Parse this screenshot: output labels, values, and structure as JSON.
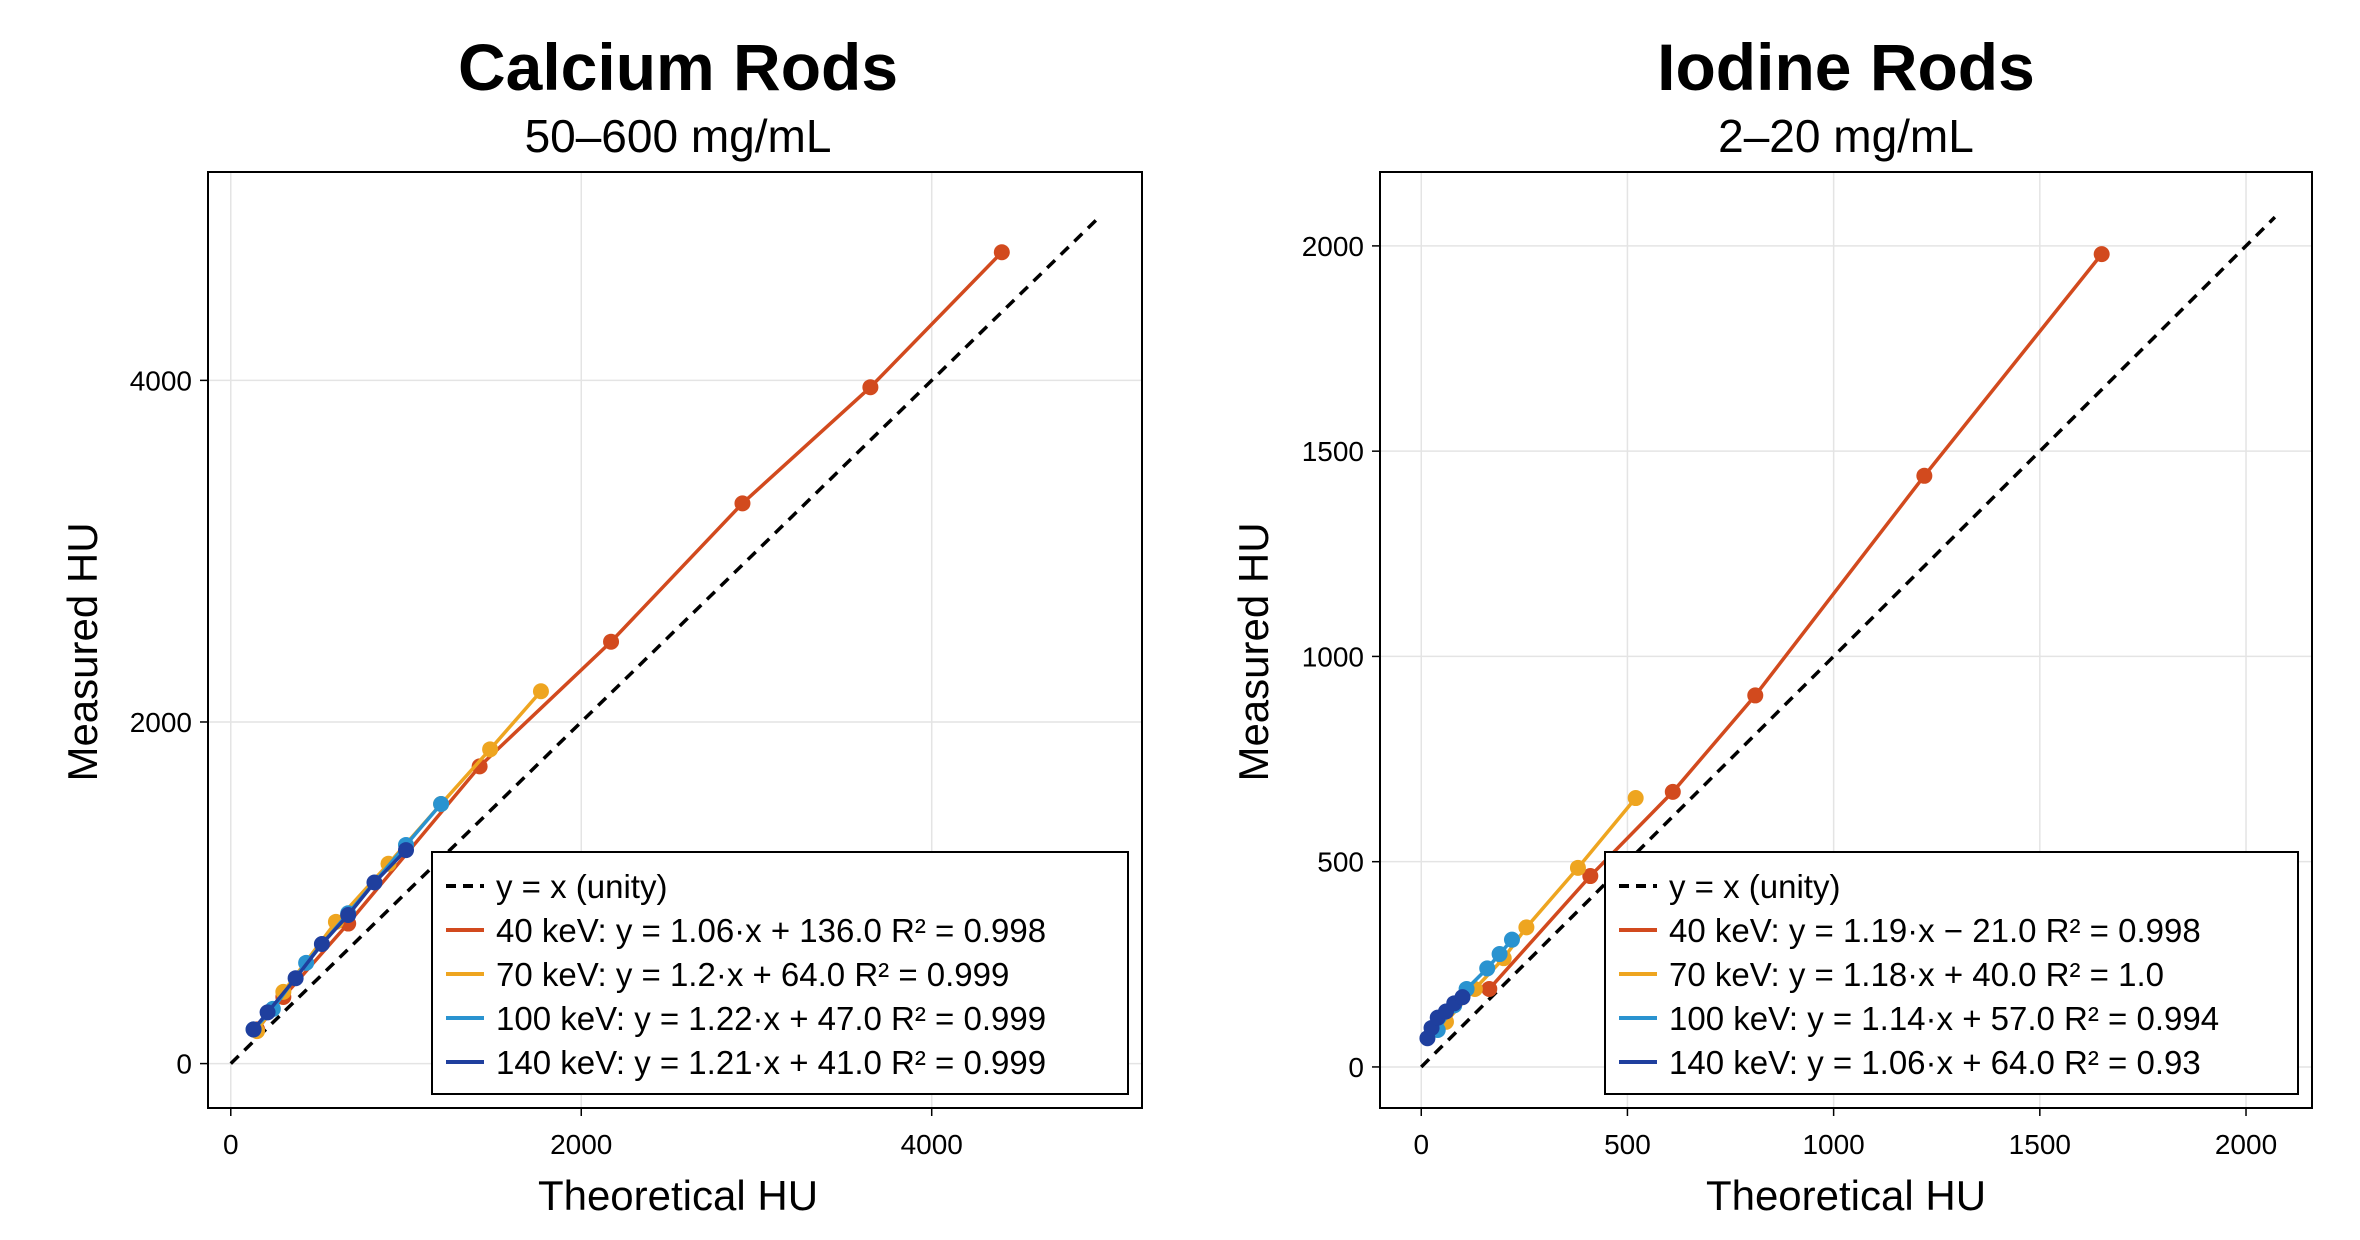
{
  "colors": {
    "kev40": "#d24a1e",
    "kev70": "#eea520",
    "kev100": "#2a93d0",
    "kev140": "#1f3f9e",
    "unity": "#000000",
    "grid": "#e4e4e4"
  },
  "chart_data": [
    {
      "type": "scatter",
      "title": "Calcium Rods",
      "subtitle": "50–600 mg/mL",
      "xlabel": "Theoretical HU",
      "ylabel": "Measured HU",
      "xlim": [
        -130,
        5200
      ],
      "ylim": [
        -260,
        5220
      ],
      "xticks": [
        0,
        2000,
        4000
      ],
      "yticks": [
        0,
        2000,
        4000
      ],
      "xtick_labels": [
        "0",
        "2000",
        "4000"
      ],
      "ytick_labels": [
        "0",
        "2000",
        "4000"
      ],
      "grid": true,
      "legend_position": "bottom-right",
      "unity": {
        "label": "y = x (unity)",
        "range": [
          0,
          4950
        ]
      },
      "series": [
        {
          "name": "40 keV",
          "legend": "40 keV: y = 1.06·x + 136.0   R² = 0.998",
          "color_key": "kev40",
          "slope": 1.06,
          "intercept": 136.0,
          "x": [
            150,
            300,
            670,
            1420,
            2170,
            2920,
            3650,
            4400
          ],
          "y": [
            200,
            390,
            820,
            1740,
            2470,
            3280,
            3960,
            4750
          ]
        },
        {
          "name": "70 keV",
          "legend": "70 keV: y = 1.2·x + 64.0   R² = 0.999",
          "color_key": "kev70",
          "x": [
            150,
            300,
            600,
            900,
            1200,
            1480,
            1770
          ],
          "y": [
            190,
            420,
            830,
            1170,
            1520,
            1840,
            2180
          ]
        },
        {
          "name": "100 keV",
          "legend": "100 keV: y = 1.22·x + 47.0   R² = 0.999",
          "color_key": "kev100",
          "x": [
            130,
            240,
            430,
            670,
            1000,
            1200
          ],
          "y": [
            200,
            320,
            590,
            880,
            1280,
            1520
          ]
        },
        {
          "name": "140 keV",
          "legend": "140 keV: y = 1.21·x + 41.0   R² = 0.999",
          "color_key": "kev140",
          "x": [
            130,
            210,
            370,
            520,
            670,
            820,
            1000
          ],
          "y": [
            200,
            300,
            500,
            700,
            870,
            1060,
            1250
          ]
        }
      ]
    },
    {
      "type": "scatter",
      "title": "Iodine Rods",
      "subtitle": "2–20 mg/mL",
      "xlabel": "Theoretical HU",
      "ylabel": "Measured HU",
      "xlim": [
        -100,
        2160
      ],
      "ylim": [
        -100,
        2180
      ],
      "xticks": [
        0,
        500,
        1000,
        1500,
        2000
      ],
      "yticks": [
        0,
        500,
        1000,
        1500,
        2000
      ],
      "xtick_labels": [
        "0",
        "500",
        "1000",
        "1500",
        "2000"
      ],
      "ytick_labels": [
        "0",
        "500",
        "1000",
        "1500",
        "2000"
      ],
      "grid": true,
      "legend_position": "bottom-right",
      "unity": {
        "label": "y = x (unity)",
        "range": [
          0,
          2070
        ]
      },
      "series": [
        {
          "name": "40 keV",
          "legend": "40 keV: y = 1.19·x − 21.0   R² = 0.998",
          "color_key": "kev40",
          "x": [
            165,
            410,
            610,
            810,
            1220,
            1650
          ],
          "y": [
            190,
            465,
            670,
            905,
            1440,
            1980
          ]
        },
        {
          "name": "70 keV",
          "legend": "70 keV: y = 1.18·x + 40.0   R² = 1.0",
          "color_key": "kev70",
          "x": [
            60,
            130,
            200,
            255,
            380,
            520
          ],
          "y": [
            110,
            190,
            265,
            340,
            485,
            655
          ]
        },
        {
          "name": "100 keV",
          "legend": "100 keV: y = 1.14·x + 57.0   R² = 0.994",
          "color_key": "kev100",
          "x": [
            40,
            80,
            110,
            160,
            190,
            220
          ],
          "y": [
            90,
            150,
            190,
            240,
            275,
            310
          ]
        },
        {
          "name": "140 keV",
          "legend": "140 keV: y = 1.06·x + 64.0   R² = 0.93",
          "color_key": "kev140",
          "x": [
            15,
            25,
            40,
            60,
            80,
            100
          ],
          "y": [
            70,
            95,
            120,
            135,
            155,
            170
          ]
        }
      ]
    }
  ]
}
